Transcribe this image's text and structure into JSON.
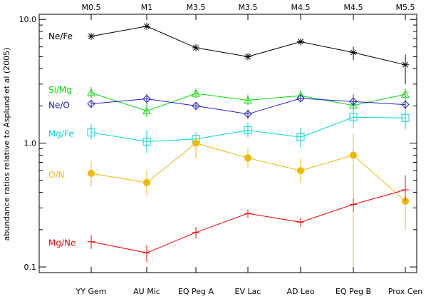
{
  "chart_data": {
    "type": "line",
    "ylabel": "abundance ratios relative to Asplund et al (2005)",
    "yscale": "log",
    "ylim": [
      0.09,
      11
    ],
    "ytick_labels": [
      "10.0",
      "1.0",
      "0.1"
    ],
    "categories": [
      "YY Gem",
      "AU Mic",
      "EQ Peg A",
      "EV Lac",
      "AD Leo",
      "EQ Peg B",
      "Prox Cen"
    ],
    "top_categories": [
      "M0.5",
      "M1",
      "M3.5",
      "M3.5",
      "M4.5",
      "M4.5",
      "M5.5"
    ],
    "series": [
      {
        "name": "Ne/Fe",
        "color": "#000000",
        "marker": "asterisk",
        "values": [
          7.3,
          8.8,
          5.9,
          5.0,
          6.6,
          5.4,
          4.3
        ],
        "err_low": [
          0,
          0,
          0,
          0,
          0,
          0.7,
          1.3
        ],
        "err_high": [
          0,
          0,
          0,
          0,
          0,
          0.6,
          0.9
        ]
      },
      {
        "name": "Si/Mg",
        "color": "#00dd00",
        "marker": "triangle",
        "values": [
          2.55,
          1.82,
          2.52,
          2.22,
          2.42,
          2.02,
          2.48
        ],
        "err_low": [
          0.25,
          0.2,
          0.2,
          0.2,
          0.2,
          0.2,
          0.3
        ],
        "err_high": [
          0.3,
          0.25,
          0.25,
          0.25,
          0.25,
          0.2,
          0.3
        ]
      },
      {
        "name": "Ne/O",
        "color": "#2020cc",
        "marker": "diamond",
        "values": [
          2.08,
          2.28,
          2.0,
          1.72,
          2.3,
          2.17,
          2.05
        ],
        "err_low": [
          0.15,
          0.2,
          0.15,
          0.15,
          0.15,
          0.35,
          0.2
        ],
        "err_high": [
          0.15,
          0.2,
          0.15,
          0.15,
          0.15,
          0.3,
          0.2
        ]
      },
      {
        "name": "Mg/Fe",
        "color": "#00d5d5",
        "marker": "square",
        "values": [
          1.22,
          1.03,
          1.08,
          1.27,
          1.12,
          1.62,
          1.6
        ],
        "err_low": [
          0.15,
          0.2,
          0.15,
          0.15,
          0.2,
          0.3,
          0.3
        ],
        "err_high": [
          0.2,
          0.25,
          0.15,
          0.2,
          0.2,
          0.3,
          0.3
        ]
      },
      {
        "name": "O/N",
        "color": "#f0b800",
        "marker": "circle",
        "values": [
          0.57,
          0.48,
          1.0,
          0.76,
          0.6,
          0.8,
          0.34
        ],
        "err_low": [
          0.12,
          0.1,
          0.25,
          0.13,
          0.12,
          0.7,
          0.14
        ],
        "err_high": [
          0.15,
          0.12,
          0.15,
          0.15,
          0.15,
          0.4,
          0.2
        ]
      },
      {
        "name": "Mg/Ne",
        "color": "#ee0000",
        "marker": "plus",
        "values": [
          0.16,
          0.13,
          0.19,
          0.27,
          0.23,
          0.32,
          0.42
        ],
        "err_low": [
          0.02,
          0.02,
          0.02,
          0.02,
          0.02,
          0.04,
          0.08
        ],
        "err_high": [
          0.02,
          0.02,
          0.02,
          0.02,
          0.02,
          0.04,
          0.13
        ]
      }
    ]
  }
}
